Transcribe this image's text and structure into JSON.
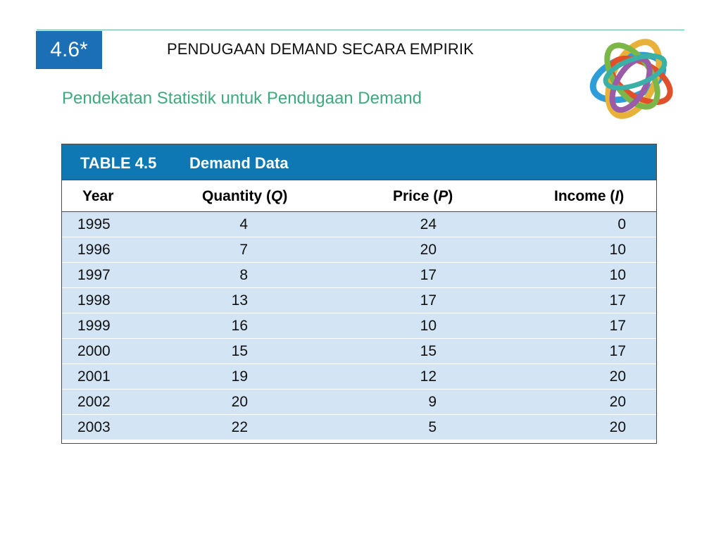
{
  "header": {
    "section_number": "4.6*",
    "title": "PENDUGAAN DEMAND SECARA EMPIRIK",
    "subtitle": "Pendekatan Statistik untuk Pendugaan Demand"
  },
  "logo": {
    "icon": "interlocking-rings-icon"
  },
  "table": {
    "number": "TABLE 4.5",
    "title": "Demand Data",
    "columns": {
      "year": "Year",
      "quantity": "Quantity",
      "quantity_symbol": "Q",
      "price": "Price",
      "price_symbol": "P",
      "income": "Income",
      "income_symbol": "I"
    },
    "rows": [
      {
        "year": "1995",
        "quantity": "4",
        "price": "24",
        "income": "0"
      },
      {
        "year": "1996",
        "quantity": "7",
        "price": "20",
        "income": "10"
      },
      {
        "year": "1997",
        "quantity": "8",
        "price": "17",
        "income": "10"
      },
      {
        "year": "1998",
        "quantity": "13",
        "price": "17",
        "income": "17"
      },
      {
        "year": "1999",
        "quantity": "16",
        "price": "10",
        "income": "17"
      },
      {
        "year": "2000",
        "quantity": "15",
        "price": "15",
        "income": "17"
      },
      {
        "year": "2001",
        "quantity": "19",
        "price": "12",
        "income": "20"
      },
      {
        "year": "2002",
        "quantity": "20",
        "price": "9",
        "income": "20"
      },
      {
        "year": "2003",
        "quantity": "22",
        "price": "5",
        "income": "20"
      }
    ]
  },
  "colors": {
    "badge": "#1a6fb5",
    "subtitle": "#3daa7d",
    "table_caption": "#0d78b4",
    "row_fill": "#d3e5f4"
  }
}
